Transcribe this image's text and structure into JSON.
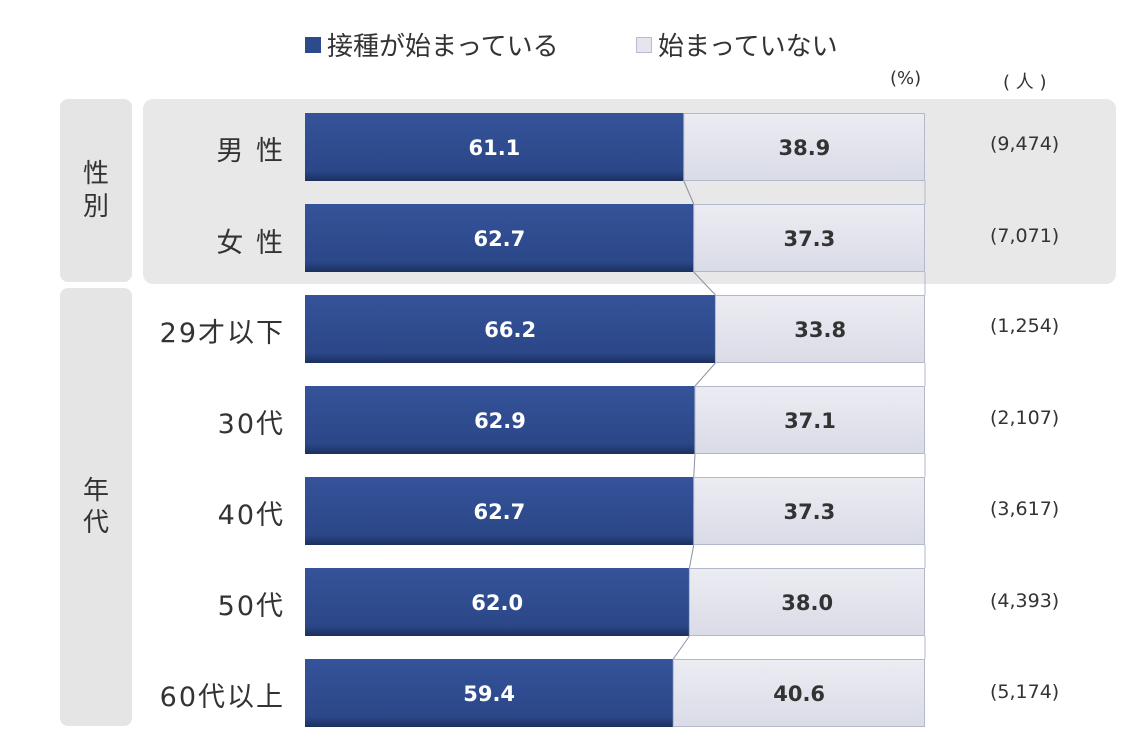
{
  "legend": [
    {
      "label": "接種が始まっている",
      "color": "#2c4a8c"
    },
    {
      "label": "始まっていない",
      "color": "#e4e5ee"
    }
  ],
  "units": {
    "percent": "(%)",
    "count": "( 人 )"
  },
  "groups": [
    {
      "label": "性別",
      "rows": [
        0,
        1
      ]
    },
    {
      "label": "年代",
      "rows": [
        2,
        3,
        4,
        5,
        6
      ]
    }
  ],
  "chart_data": {
    "type": "bar",
    "stacked": true,
    "orientation": "horizontal",
    "categories": [
      "男 性",
      "女 性",
      "29才以下",
      "30代",
      "40代",
      "50代",
      "60代以上"
    ],
    "series": [
      {
        "name": "接種が始まっている",
        "values": [
          61.1,
          62.7,
          66.2,
          62.9,
          62.7,
          62.0,
          59.4
        ],
        "labels": [
          "61.1",
          "62.7",
          "66.2",
          "62.9",
          "62.7",
          "62.0",
          "59.4"
        ],
        "color": "#2c4a8c"
      },
      {
        "name": "始まっていない",
        "values": [
          38.9,
          37.3,
          33.8,
          37.1,
          37.3,
          38.0,
          40.6
        ],
        "labels": [
          "38.9",
          "37.3",
          "33.8",
          "37.1",
          "37.3",
          "38.0",
          "40.6"
        ],
        "color": "#e4e5ee"
      }
    ],
    "n": [
      "(9,474)",
      "(7,071)",
      "(1,254)",
      "(2,107)",
      "(3,617)",
      "(4,393)",
      "(5,174)"
    ],
    "xlim": [
      0,
      100
    ]
  }
}
